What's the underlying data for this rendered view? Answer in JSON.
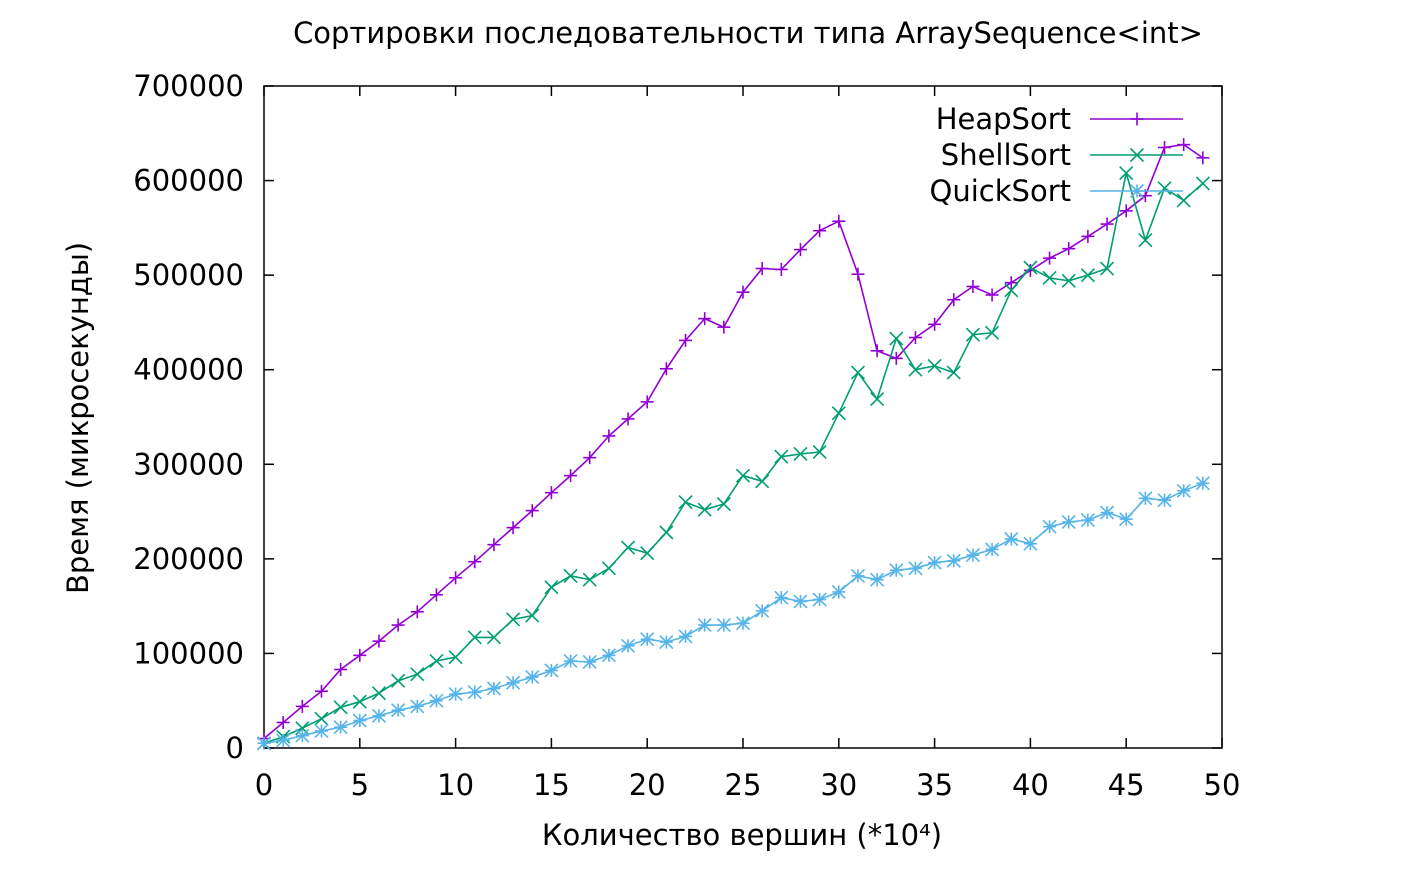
{
  "chart_data": {
    "type": "line",
    "title": "Сортировки последовательности типа ArraySequence<int>",
    "xlabel": "Количество вершин (*10⁴)",
    "ylabel": "Время (микросекунды)",
    "xlim": [
      0,
      50
    ],
    "ylim": [
      0,
      700000
    ],
    "xticks": [
      0,
      5,
      10,
      15,
      20,
      25,
      30,
      35,
      40,
      45,
      50
    ],
    "yticks": [
      0,
      100000,
      200000,
      300000,
      400000,
      500000,
      600000,
      700000
    ],
    "grid": false,
    "legend_position": "top-right",
    "x": [
      0,
      1,
      2,
      3,
      4,
      5,
      6,
      7,
      8,
      9,
      10,
      11,
      12,
      13,
      14,
      15,
      16,
      17,
      18,
      19,
      20,
      21,
      22,
      23,
      24,
      25,
      26,
      27,
      28,
      29,
      30,
      31,
      32,
      33,
      34,
      35,
      36,
      37,
      38,
      39,
      40,
      41,
      42,
      43,
      44,
      45,
      46,
      47,
      48,
      49
    ],
    "series": [
      {
        "name": "HeapSort",
        "color": "#9400d3",
        "marker": "plus",
        "values": [
          10000,
          27000,
          44000,
          60000,
          83000,
          98000,
          113000,
          130000,
          144000,
          162000,
          180000,
          197000,
          215000,
          233000,
          251000,
          270000,
          288000,
          307000,
          330000,
          348000,
          366000,
          401000,
          431000,
          454000,
          445000,
          482000,
          507000,
          506000,
          527000,
          547000,
          557000,
          501000,
          420000,
          412000,
          434000,
          448000,
          474000,
          488000,
          479000,
          492000,
          505000,
          518000,
          528000,
          541000,
          554000,
          568000,
          584000,
          635000,
          638000,
          624000
        ]
      },
      {
        "name": "ShellSort",
        "color": "#009e73",
        "marker": "cross",
        "values": [
          5000,
          12000,
          21000,
          31000,
          43000,
          49000,
          58000,
          71000,
          78000,
          92000,
          96000,
          117000,
          117000,
          136000,
          140000,
          170000,
          182000,
          178000,
          190000,
          212000,
          206000,
          228000,
          260000,
          252000,
          258000,
          288000,
          282000,
          308000,
          311000,
          313000,
          354000,
          397000,
          369000,
          433000,
          400000,
          404000,
          397000,
          437000,
          439000,
          484000,
          508000,
          497000,
          494000,
          500000,
          507000,
          608000,
          537000,
          592000,
          579000,
          597000
        ]
      },
      {
        "name": "QuickSort",
        "color": "#56b4e9",
        "marker": "star",
        "values": [
          5000,
          8000,
          13000,
          18000,
          22000,
          29000,
          34000,
          40000,
          44000,
          50000,
          57000,
          59000,
          63000,
          69000,
          75000,
          82000,
          92000,
          91000,
          98000,
          108000,
          115000,
          112000,
          118000,
          130000,
          130000,
          132000,
          145000,
          159000,
          155000,
          157000,
          165000,
          182000,
          178000,
          188000,
          190000,
          196000,
          198000,
          204000,
          210000,
          221000,
          216000,
          234000,
          239000,
          241000,
          249000,
          242000,
          264000,
          262000,
          272000,
          280000
        ]
      }
    ]
  }
}
